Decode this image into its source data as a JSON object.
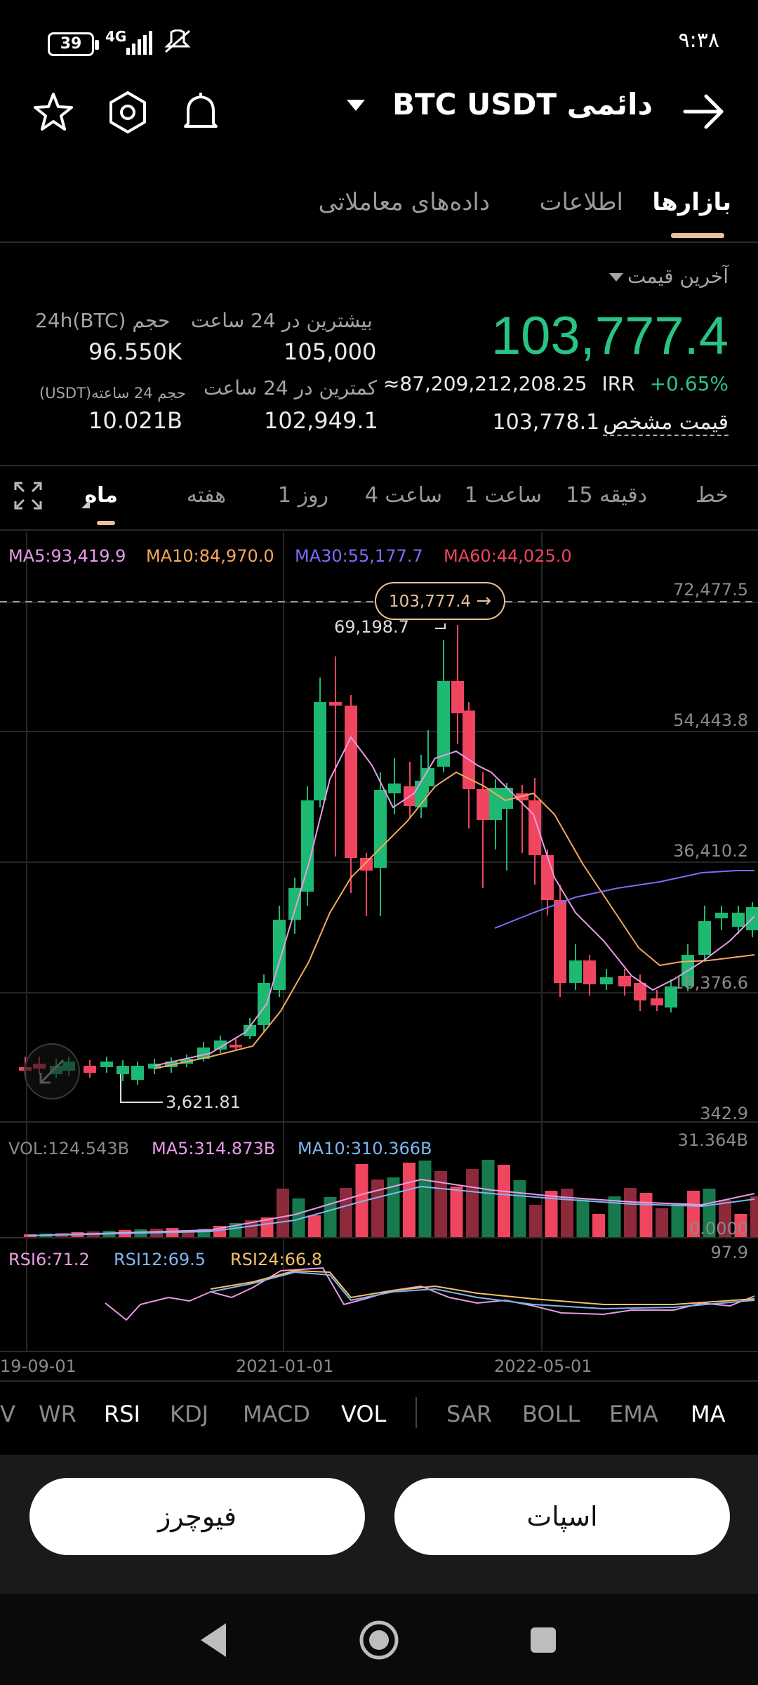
{
  "status_bar": {
    "battery": "39",
    "network": "4G",
    "time": "۹:۳۸"
  },
  "header": {
    "pair": "BTC USDT",
    "market_type": "دائمی"
  },
  "tabs": [
    {
      "label": "بازارها",
      "active": true
    },
    {
      "label": "اطلاعات",
      "active": false
    },
    {
      "label": "داده‌های معاملاتی",
      "active": false
    }
  ],
  "price": {
    "dropdown_label": "آخرین قیمت",
    "last_price": "103,777.4",
    "change": "+0.65%",
    "irr_unit": "IRR",
    "irr_value": "≈87,209,212,208.25",
    "mark_label": "قیمت مشخص",
    "mark_value": "103,778.1",
    "high_label": "بیشترین در 24 ساعت",
    "high_value": "105,000",
    "low_label": "کمترین در 24 ساعت",
    "low_value": "102,949.1",
    "vol_btc_label": "24h(BTC) حجم",
    "vol_btc_value": "96.550K",
    "vol_usdt_label": "(USDT)حجم 24 ساعته",
    "vol_usdt_value": "10.021B"
  },
  "timeframes": [
    {
      "label": "خط"
    },
    {
      "label": "15 دقیقه"
    },
    {
      "label": "1 ساعت"
    },
    {
      "label": "4 ساعت"
    },
    {
      "label": "1 روز"
    },
    {
      "label": "هفته"
    },
    {
      "label": "ماه",
      "active": true
    }
  ],
  "ma_legend": {
    "ma5": "MA5:93,419.9",
    "ma10": "MA10:84,970.0",
    "ma30": "MA30:55,177.7",
    "ma60": "MA60:44,025.0"
  },
  "price_axis": [
    "72,477.5",
    "54,443.8",
    "36,410.2",
    "18,376.6",
    "342.9"
  ],
  "price_tag": "103,777.4",
  "high_marker": "69,198.7",
  "low_marker": "3,621.81",
  "vol_legend": {
    "vol": "VOL:124.543B",
    "ma5": "MA5:314.873B",
    "ma10": "MA10:310.366B",
    "axis_top": "31.364B",
    "axis_bottom": "0.0000"
  },
  "rsi_legend": {
    "rsi6": "RSI6:71.2",
    "rsi12": "RSI12:69.5",
    "rsi24": "RSI24:66.8",
    "axis_top": "97.9"
  },
  "date_axis": [
    "19-09-01",
    "2021-01-01",
    "2022-05-01"
  ],
  "indicators": [
    {
      "label": "V",
      "on": false
    },
    {
      "label": "WR",
      "on": false
    },
    {
      "label": "RSI",
      "on": true
    },
    {
      "label": "KDJ",
      "on": false
    },
    {
      "label": "MACD",
      "on": false
    },
    {
      "label": "VOL",
      "on": true
    },
    {
      "label": "SAR",
      "on": false
    },
    {
      "label": "BOLL",
      "on": false
    },
    {
      "label": "EMA",
      "on": false
    },
    {
      "label": "MA",
      "on": true
    }
  ],
  "buttons": {
    "futures": "فیوچرز",
    "spot": "اسپات"
  },
  "colors": {
    "up": "#1db872",
    "down": "#f0455f",
    "accent": "#e8c19a",
    "ma5": "#e89be6",
    "ma10": "#f5a85c",
    "ma30": "#7b6ef7",
    "ma60": "#f0455f"
  }
}
